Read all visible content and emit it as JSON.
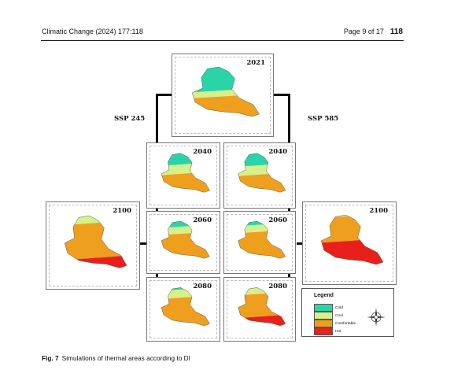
{
  "header": {
    "journal": "Climatic Change (2024) 177:118",
    "page": "Page 9 of 17",
    "article_number": "118"
  },
  "scenarios": {
    "left": "SSP 245",
    "right": "SSP 585"
  },
  "maps": [
    {
      "id": "base",
      "year": "2021"
    },
    {
      "id": "ssp245-2040",
      "year": "2040"
    },
    {
      "id": "ssp245-2060",
      "year": "2060"
    },
    {
      "id": "ssp245-2080",
      "year": "2080"
    },
    {
      "id": "ssp245-2100",
      "year": "2100"
    },
    {
      "id": "ssp585-2040",
      "year": "2040"
    },
    {
      "id": "ssp585-2060",
      "year": "2060"
    },
    {
      "id": "ssp585-2080",
      "year": "2080"
    },
    {
      "id": "ssp585-2100",
      "year": "2100"
    }
  ],
  "legend": {
    "title": "Legend",
    "items": [
      {
        "label": "Cold",
        "color": "#2ad4a8"
      },
      {
        "label": "Cool",
        "color": "#d8f08a"
      },
      {
        "label": "Comfortable",
        "color": "#ef9f1e"
      },
      {
        "label": "Hot",
        "color": "#e8201c"
      }
    ]
  },
  "caption": {
    "label": "Fig. 7",
    "text": "Simulations of thermal areas according to DI"
  }
}
